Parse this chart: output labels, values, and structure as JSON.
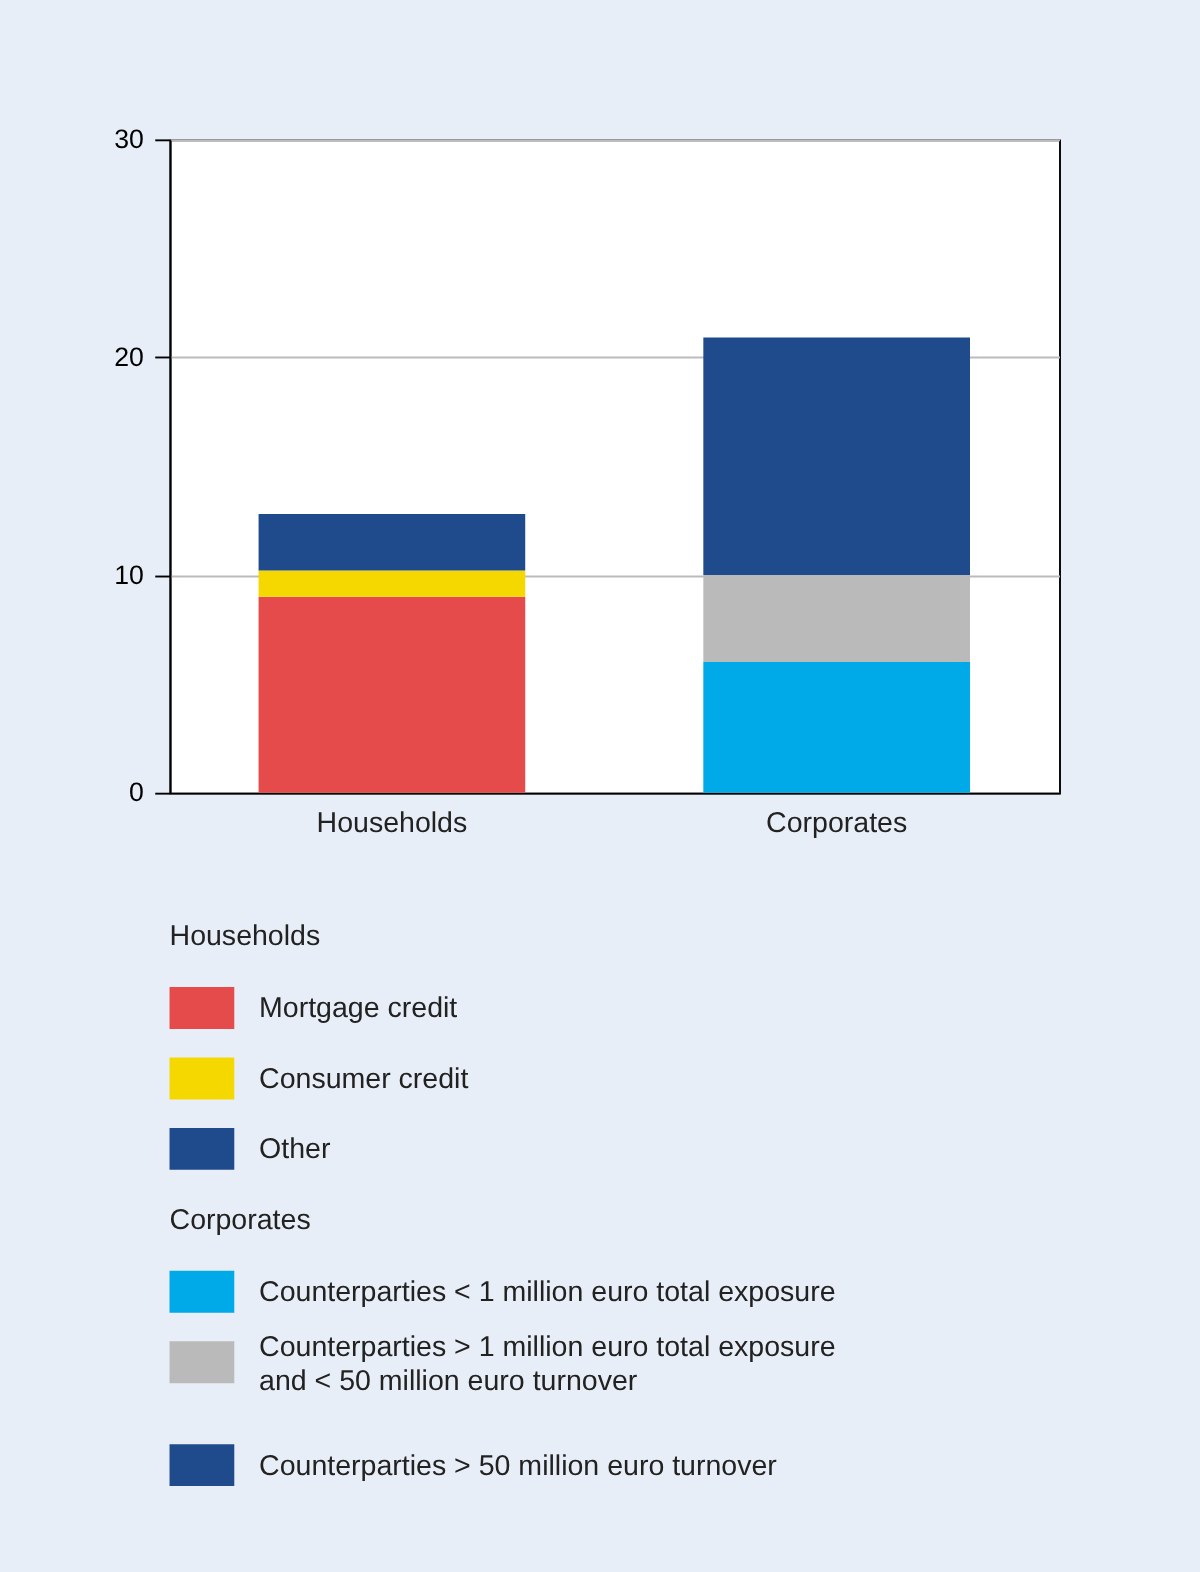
{
  "chart_data": {
    "type": "bar",
    "stacked": true,
    "categories": [
      "Households",
      "Corporates"
    ],
    "series": [
      {
        "name": "Mortgage credit",
        "color": "#e54b4b",
        "values": [
          9.0,
          null
        ]
      },
      {
        "name": "Consumer credit",
        "color": "#f5d800",
        "values": [
          1.2,
          null
        ]
      },
      {
        "name": "Other",
        "color": "#1f4a8c",
        "values": [
          2.6,
          null
        ]
      },
      {
        "name": "Counterparties < 1 million euro total exposure",
        "color": "#00a9e8",
        "values": [
          null,
          6.0
        ]
      },
      {
        "name": "Counterparties > 1 million euro total exposure and < 50 million euro turnover",
        "color": "#bababa",
        "values": [
          null,
          4.0
        ]
      },
      {
        "name": "Counterparties > 50 million euro turnover",
        "color": "#1f4a8c",
        "values": [
          null,
          10.9
        ]
      }
    ],
    "annotations": [
      "Households",
      "Corporates"
    ],
    "ylim": [
      0,
      30
    ],
    "yticks": [
      0,
      10,
      20,
      30
    ],
    "grid": "y",
    "legend": "bottom"
  }
}
